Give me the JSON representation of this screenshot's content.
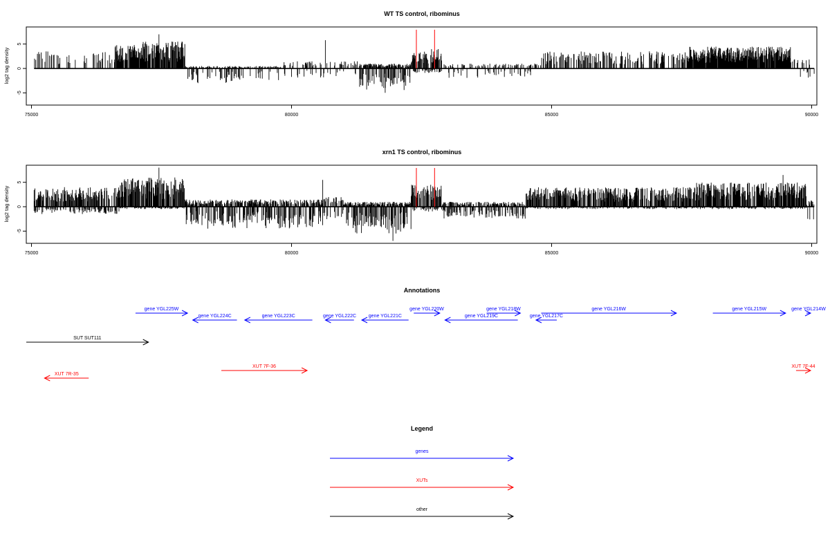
{
  "chart_data": [
    {
      "type": "bar",
      "title": "WT TS control, ribominus",
      "ylabel": "log2 tag density",
      "xlabel": "",
      "xlim": [
        74900,
        90100
      ],
      "ylim": [
        -7.5,
        8.5
      ],
      "x_ticks": [
        75000,
        80000,
        85000,
        90000
      ],
      "y_ticks": [
        -5,
        0,
        5
      ],
      "grid": false,
      "series_color": "#000000",
      "marker_color": "#ff0000",
      "markers_x": [
        82400,
        82750
      ],
      "density_profile": [
        {
          "start": 75050,
          "end": 76600,
          "pos_max": 3.5,
          "neg_max": 0.3,
          "density": 0.25
        },
        {
          "start": 76600,
          "end": 77100,
          "pos_max": 4.8,
          "neg_max": 0.3,
          "density": 0.9
        },
        {
          "start": 77100,
          "end": 77950,
          "pos_max": 5.5,
          "neg_max": 0.3,
          "density": 0.85
        },
        {
          "start": 77950,
          "end": 79800,
          "pos_max": 0.5,
          "neg_max": 3.0,
          "density": 0.45
        },
        {
          "start": 79800,
          "end": 81300,
          "pos_max": 1.5,
          "neg_max": 2.0,
          "density": 0.3
        },
        {
          "start": 81300,
          "end": 82300,
          "pos_max": 1.0,
          "neg_max": 4.5,
          "density": 0.9
        },
        {
          "start": 82300,
          "end": 82900,
          "pos_max": 4.0,
          "neg_max": 1.0,
          "density": 0.8
        },
        {
          "start": 82900,
          "end": 84800,
          "pos_max": 1.0,
          "neg_max": 2.0,
          "density": 0.35
        },
        {
          "start": 84800,
          "end": 87600,
          "pos_max": 3.5,
          "neg_max": 0.2,
          "density": 0.45
        },
        {
          "start": 87600,
          "end": 89600,
          "pos_max": 4.5,
          "neg_max": 0.3,
          "density": 0.95
        },
        {
          "start": 89600,
          "end": 90050,
          "pos_max": 2.0,
          "neg_max": 2.0,
          "density": 0.3
        }
      ],
      "peaks": [
        [
          77450,
          7.0
        ],
        [
          80650,
          5.8
        ],
        [
          81800,
          -5.0
        ],
        [
          78200,
          -3.0
        ]
      ]
    },
    {
      "type": "bar",
      "title": "xrn1 TS control, ribominus",
      "ylabel": "log2 tag density",
      "xlabel": "",
      "xlim": [
        74900,
        90100
      ],
      "ylim": [
        -7.5,
        8.5
      ],
      "x_ticks": [
        75000,
        80000,
        85000,
        90000
      ],
      "y_ticks": [
        -5,
        0,
        5
      ],
      "grid": false,
      "series_color": "#000000",
      "marker_color": "#ff0000",
      "markers_x": [
        82400,
        82750
      ],
      "density_profile": [
        {
          "start": 75050,
          "end": 76700,
          "pos_max": 4.0,
          "neg_max": 1.5,
          "density": 0.85
        },
        {
          "start": 76700,
          "end": 77950,
          "pos_max": 6.0,
          "neg_max": 0.5,
          "density": 0.95
        },
        {
          "start": 77950,
          "end": 80600,
          "pos_max": 1.5,
          "neg_max": 4.5,
          "density": 0.85
        },
        {
          "start": 80600,
          "end": 81000,
          "pos_max": 2.0,
          "neg_max": 3.0,
          "density": 0.6
        },
        {
          "start": 81000,
          "end": 82300,
          "pos_max": 1.0,
          "neg_max": 5.5,
          "density": 0.95
        },
        {
          "start": 82300,
          "end": 82900,
          "pos_max": 4.5,
          "neg_max": 1.0,
          "density": 0.8
        },
        {
          "start": 82900,
          "end": 84500,
          "pos_max": 1.0,
          "neg_max": 2.5,
          "density": 0.75
        },
        {
          "start": 84500,
          "end": 87700,
          "pos_max": 4.0,
          "neg_max": 0.5,
          "density": 0.85
        },
        {
          "start": 87700,
          "end": 89900,
          "pos_max": 5.0,
          "neg_max": 0.5,
          "density": 0.95
        },
        {
          "start": 89900,
          "end": 90050,
          "pos_max": 1.5,
          "neg_max": 3.5,
          "density": 0.6
        }
      ],
      "peaks": [
        [
          77450,
          8.0
        ],
        [
          80600,
          5.5
        ],
        [
          81950,
          -7.0
        ],
        [
          89450,
          6.5
        ]
      ]
    }
  ],
  "annotations": {
    "title": "Annotations",
    "xlim": [
      74900,
      90100
    ],
    "features": [
      {
        "label": "gene YGL225W",
        "start": 77000,
        "end": 78000,
        "strand": "+",
        "kind": "gene",
        "row": 0
      },
      {
        "label": "gene YGL224C",
        "start": 78100,
        "end": 78950,
        "strand": "-",
        "kind": "gene",
        "row": 1
      },
      {
        "label": "gene YGL223C",
        "start": 79100,
        "end": 80400,
        "strand": "-",
        "kind": "gene",
        "row": 1
      },
      {
        "label": "gene YGL222C",
        "start": 80650,
        "end": 81200,
        "strand": "-",
        "kind": "gene",
        "row": 1
      },
      {
        "label": "gene YGL221C",
        "start": 81350,
        "end": 82250,
        "strand": "-",
        "kind": "gene",
        "row": 1
      },
      {
        "label": "gene YGL220W",
        "start": 82350,
        "end": 82850,
        "strand": "+",
        "kind": "gene",
        "row": 0
      },
      {
        "label": "gene YGL219C",
        "start": 82950,
        "end": 84350,
        "strand": "-",
        "kind": "gene",
        "row": 1
      },
      {
        "label": "gene YGL218W",
        "start": 83750,
        "end": 84400,
        "strand": "+",
        "kind": "gene",
        "row": 0
      },
      {
        "label": "gene YGL217C",
        "start": 84700,
        "end": 85100,
        "strand": "-",
        "kind": "gene",
        "row": 1
      },
      {
        "label": "gene YGL216W",
        "start": 84800,
        "end": 87400,
        "strand": "+",
        "kind": "gene",
        "row": 0
      },
      {
        "label": "gene YGL215W",
        "start": 88100,
        "end": 89500,
        "strand": "+",
        "kind": "gene",
        "row": 0
      },
      {
        "label": "gene YGL214W",
        "start": 89900,
        "end": 90450,
        "strand": "+",
        "kind": "gene",
        "row": 0
      },
      {
        "label": "SUT SUT111",
        "start": 74900,
        "end": 77250,
        "strand": "+",
        "kind": "other",
        "row": 2
      },
      {
        "label": "XUT 7R-35",
        "start": 75250,
        "end": 76100,
        "strand": "-",
        "kind": "xut",
        "row": 3
      },
      {
        "label": "XUT 7F-36",
        "start": 78650,
        "end": 80300,
        "strand": "+",
        "kind": "xut",
        "row": 4
      },
      {
        "label": "XUT 7F-44",
        "start": 89700,
        "end": 90200,
        "strand": "+",
        "kind": "xut",
        "row": 4
      }
    ]
  },
  "legend": {
    "title": "Legend",
    "items": [
      {
        "label": "genes",
        "color": "#0000ff"
      },
      {
        "label": "XUTs",
        "color": "#ff0000"
      },
      {
        "label": "other",
        "color": "#000000"
      }
    ]
  },
  "colors": {
    "gene": "#0000ff",
    "xut": "#ff0000",
    "other": "#000000"
  }
}
